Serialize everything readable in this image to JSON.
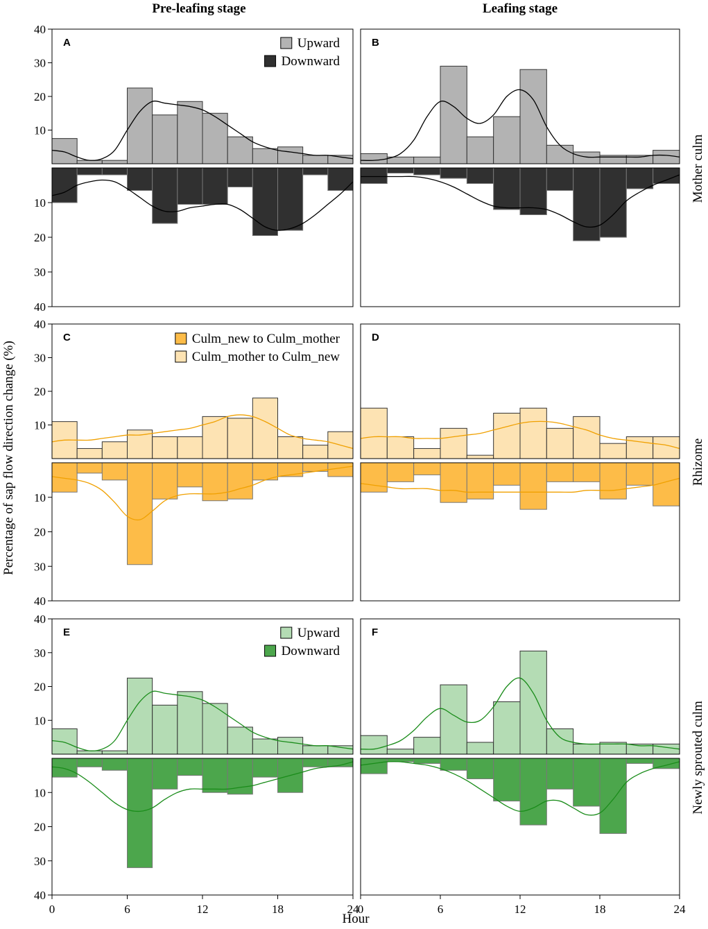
{
  "figure": {
    "column_titles": [
      "Pre-leafing stage",
      "Leafing stage"
    ],
    "row_labels": [
      "Mother culm",
      "Rhizome",
      "Newly sprouted culm"
    ],
    "ylabel": "Percentage of sap flow direction change (%)",
    "xlabel": "Hour"
  },
  "chart_data": [
    {
      "type": "bar",
      "panel": "A",
      "row": 0,
      "col": 0,
      "bins_start": [
        0,
        2,
        4,
        6,
        8,
        10,
        12,
        14,
        16,
        18,
        20,
        22
      ],
      "bin_width": 2,
      "xlim": [
        0,
        24
      ],
      "xticks": [
        0,
        6,
        12,
        18,
        24
      ],
      "ylim": [
        0,
        40
      ],
      "yticks": [
        10,
        20,
        30,
        40
      ],
      "legend": [
        "Upward",
        "Downward"
      ],
      "colors": {
        "up": "#b3b3b3",
        "down": "#303030",
        "line": "#000000"
      },
      "series": [
        {
          "name": "Upward",
          "values": [
            7.5,
            1,
            1,
            22.5,
            14.5,
            18.5,
            15,
            8,
            4.5,
            5,
            2.5,
            2.5
          ]
        },
        {
          "name": "Downward",
          "values": [
            10,
            2,
            2,
            6.5,
            16,
            10.5,
            10.5,
            5.5,
            19.5,
            18,
            2,
            6.5
          ]
        }
      ],
      "smooth": [
        {
          "series": "Upward",
          "x": [
            0,
            1,
            2,
            3,
            4,
            5,
            6,
            7,
            8,
            9,
            10,
            11,
            12,
            13,
            14,
            15,
            16,
            17,
            18,
            19,
            20,
            21,
            22,
            23,
            24
          ],
          "y": [
            4,
            3.5,
            2,
            1,
            1.5,
            4,
            10,
            15.5,
            18.5,
            18,
            17.5,
            17,
            16,
            14,
            11.5,
            9,
            6.5,
            5,
            4,
            3.5,
            3,
            2.5,
            2.5,
            2,
            1.5
          ]
        },
        {
          "series": "Downward",
          "x": [
            0,
            1,
            2,
            3,
            4,
            5,
            6,
            7,
            8,
            9,
            10,
            11,
            12,
            13,
            14,
            15,
            16,
            17,
            18,
            19,
            20,
            21,
            22,
            23,
            24
          ],
          "y": [
            8,
            7,
            5,
            4,
            3.5,
            4,
            6,
            8.5,
            11,
            12.5,
            12.5,
            11.5,
            11,
            10.5,
            10.5,
            12,
            14.5,
            17,
            18,
            17.5,
            16,
            13.5,
            10.5,
            7.5,
            4
          ]
        }
      ]
    },
    {
      "type": "bar",
      "panel": "B",
      "row": 0,
      "col": 1,
      "bins_start": [
        0,
        2,
        4,
        6,
        8,
        10,
        12,
        14,
        16,
        18,
        20,
        22
      ],
      "bin_width": 2,
      "xlim": [
        0,
        24
      ],
      "xticks": [
        0,
        6,
        12,
        18,
        24
      ],
      "ylim": [
        0,
        40
      ],
      "yticks": [
        10,
        20,
        30,
        40
      ],
      "colors": {
        "up": "#b3b3b3",
        "down": "#303030",
        "line": "#000000"
      },
      "series": [
        {
          "name": "Upward",
          "values": [
            3,
            2,
            2,
            29,
            8,
            14,
            28,
            5.5,
            3.5,
            2.5,
            2.5,
            4
          ]
        },
        {
          "name": "Downward",
          "values": [
            4.5,
            1.5,
            2,
            3,
            4.5,
            12,
            13.5,
            6.5,
            21,
            20,
            6,
            4.5
          ]
        }
      ],
      "smooth": [
        {
          "series": "Upward",
          "x": [
            0,
            1,
            2,
            3,
            4,
            5,
            6,
            7,
            8,
            9,
            10,
            11,
            12,
            13,
            14,
            15,
            16,
            17,
            18,
            19,
            20,
            21,
            22,
            23,
            24
          ],
          "y": [
            1,
            1,
            1.5,
            3,
            7,
            14,
            18.5,
            17,
            13.5,
            12,
            14.5,
            20,
            22,
            19,
            11,
            5.5,
            3,
            2,
            2,
            2,
            2,
            2,
            2.5,
            2.5,
            2
          ]
        },
        {
          "series": "Downward",
          "x": [
            0,
            1,
            2,
            3,
            4,
            5,
            6,
            7,
            8,
            9,
            10,
            11,
            12,
            13,
            14,
            15,
            16,
            17,
            18,
            19,
            20,
            21,
            22,
            23,
            24
          ],
          "y": [
            2.5,
            2.5,
            2.5,
            2.5,
            2.5,
            3,
            4,
            5.5,
            7.5,
            9.5,
            11,
            11.5,
            11.5,
            11.5,
            12,
            13.5,
            15.5,
            17,
            16.5,
            13.5,
            9.5,
            7,
            5,
            3.5,
            2
          ]
        }
      ]
    },
    {
      "type": "bar",
      "panel": "C",
      "row": 1,
      "col": 0,
      "bins_start": [
        0,
        2,
        4,
        6,
        8,
        10,
        12,
        14,
        16,
        18,
        20,
        22
      ],
      "bin_width": 2,
      "xlim": [
        0,
        24
      ],
      "xticks": [
        0,
        6,
        12,
        18,
        24
      ],
      "ylim": [
        0,
        40
      ],
      "yticks": [
        10,
        20,
        30,
        40
      ],
      "legend": [
        "Culm_new to Culm_mother",
        "Culm_mother to Culm_new"
      ],
      "colors": {
        "up": "#fde3b3",
        "down": "#fdbc48",
        "line": "#f0a000"
      },
      "series": [
        {
          "name": "Culm_mother to Culm_new",
          "values": [
            11,
            3,
            5,
            8.5,
            6.5,
            6.5,
            12.5,
            12,
            18,
            6.5,
            4,
            8
          ]
        },
        {
          "name": "Culm_new to Culm_mother",
          "values": [
            8.5,
            3,
            5,
            29.5,
            10.5,
            7,
            11,
            10.5,
            5,
            4,
            2.5,
            4
          ]
        }
      ],
      "smooth": [
        {
          "series": "Culm_mother to Culm_new",
          "x": [
            0,
            1,
            2,
            3,
            4,
            5,
            6,
            7,
            8,
            9,
            10,
            11,
            12,
            13,
            14,
            15,
            16,
            17,
            18,
            19,
            20,
            21,
            22,
            23,
            24
          ],
          "y": [
            5,
            5.5,
            5.5,
            5.5,
            6,
            6.5,
            7,
            7,
            7.5,
            8,
            8.5,
            9,
            10,
            11,
            12.5,
            13,
            12.5,
            11,
            9,
            7,
            6,
            5.5,
            5,
            4,
            3
          ]
        },
        {
          "series": "Culm_new to Culm_mother",
          "x": [
            0,
            1,
            2,
            3,
            4,
            5,
            6,
            7,
            8,
            9,
            10,
            11,
            12,
            13,
            14,
            15,
            16,
            17,
            18,
            19,
            20,
            21,
            22,
            23,
            24
          ],
          "y": [
            4,
            4.5,
            5,
            6,
            8,
            11.5,
            15.5,
            16.5,
            14,
            11,
            9.5,
            9,
            9,
            9,
            8.5,
            7.5,
            6.5,
            5,
            4,
            3.5,
            3,
            2.5,
            2,
            1.5,
            1
          ]
        }
      ]
    },
    {
      "type": "bar",
      "panel": "D",
      "row": 1,
      "col": 1,
      "bins_start": [
        0,
        2,
        4,
        6,
        8,
        10,
        12,
        14,
        16,
        18,
        20,
        22
      ],
      "bin_width": 2,
      "xlim": [
        0,
        24
      ],
      "xticks": [
        0,
        6,
        12,
        18,
        24
      ],
      "ylim": [
        0,
        40
      ],
      "yticks": [
        10,
        20,
        30,
        40
      ],
      "colors": {
        "up": "#fde3b3",
        "down": "#fdbc48",
        "line": "#f0a000"
      },
      "series": [
        {
          "name": "Culm_mother to Culm_new",
          "values": [
            15,
            6.5,
            3,
            9,
            1,
            13.5,
            15,
            9,
            12.5,
            4.5,
            6.5,
            6.5
          ]
        },
        {
          "name": "Culm_new to Culm_mother",
          "values": [
            8.5,
            5.5,
            3.5,
            11.5,
            10.5,
            6.5,
            13.5,
            5.5,
            5.5,
            10.5,
            6.5,
            12.5
          ]
        }
      ],
      "smooth": [
        {
          "series": "Culm_mother to Culm_new",
          "x": [
            0,
            1,
            2,
            3,
            4,
            5,
            6,
            7,
            8,
            9,
            10,
            11,
            12,
            13,
            14,
            15,
            16,
            17,
            18,
            19,
            20,
            21,
            22,
            23,
            24
          ],
          "y": [
            6,
            6.5,
            6.5,
            6.5,
            6,
            6,
            6,
            6.5,
            7,
            7.5,
            8.5,
            9.5,
            10.5,
            11,
            11,
            10.5,
            9.5,
            8.5,
            7,
            6,
            5.5,
            5,
            4.5,
            4,
            3
          ]
        },
        {
          "series": "Culm_new to Culm_mother",
          "x": [
            0,
            1,
            2,
            3,
            4,
            5,
            6,
            7,
            8,
            9,
            10,
            11,
            12,
            13,
            14,
            15,
            16,
            17,
            18,
            19,
            20,
            21,
            22,
            23,
            24
          ],
          "y": [
            6,
            6.5,
            7,
            7.5,
            7.5,
            7.5,
            8,
            8,
            8.5,
            8.5,
            8.5,
            8.5,
            8.5,
            8.5,
            8.5,
            8.5,
            8.5,
            8,
            8,
            8,
            7.5,
            7,
            6.5,
            5.5,
            4.5
          ]
        }
      ]
    },
    {
      "type": "bar",
      "panel": "E",
      "row": 2,
      "col": 0,
      "bins_start": [
        0,
        2,
        4,
        6,
        8,
        10,
        12,
        14,
        16,
        18,
        20,
        22
      ],
      "bin_width": 2,
      "xlim": [
        0,
        24
      ],
      "xticks": [
        0,
        6,
        12,
        18,
        24
      ],
      "ylim": [
        0,
        40
      ],
      "yticks": [
        10,
        20,
        30,
        40
      ],
      "legend": [
        "Upward",
        "Downward"
      ],
      "colors": {
        "up": "#b4dcb4",
        "down": "#4ca64c",
        "line": "#1a8c1a"
      },
      "series": [
        {
          "name": "Upward",
          "values": [
            7.5,
            1,
            1,
            22.5,
            14.5,
            18.5,
            15,
            8,
            4.5,
            5,
            2.5,
            2.5
          ]
        },
        {
          "name": "Downward",
          "values": [
            5.5,
            2.5,
            3.5,
            32,
            9,
            5,
            10,
            10.5,
            5.5,
            10,
            2.5,
            2.5
          ]
        }
      ],
      "smooth": [
        {
          "series": "Upward",
          "x": [
            0,
            1,
            2,
            3,
            4,
            5,
            6,
            7,
            8,
            9,
            10,
            11,
            12,
            13,
            14,
            15,
            16,
            17,
            18,
            19,
            20,
            21,
            22,
            23,
            24
          ],
          "y": [
            4,
            3.5,
            2,
            1,
            1.5,
            4,
            10,
            15.5,
            18.5,
            18,
            17.5,
            17,
            16,
            14,
            11.5,
            9,
            6.5,
            5,
            4,
            3.5,
            3,
            2.5,
            2.5,
            2,
            1.5
          ]
        },
        {
          "series": "Downward",
          "x": [
            0,
            1,
            2,
            3,
            4,
            5,
            6,
            7,
            8,
            9,
            10,
            11,
            12,
            13,
            14,
            15,
            16,
            17,
            18,
            19,
            20,
            21,
            22,
            23,
            24
          ],
          "y": [
            2.5,
            3,
            4.5,
            7,
            10,
            13,
            15,
            15.5,
            14.5,
            12,
            10,
            9,
            9,
            9,
            9,
            8.5,
            8,
            7,
            6,
            5,
            4,
            3,
            2.5,
            2,
            1
          ]
        }
      ]
    },
    {
      "type": "bar",
      "panel": "F",
      "row": 2,
      "col": 1,
      "bins_start": [
        0,
        2,
        4,
        6,
        8,
        10,
        12,
        14,
        16,
        18,
        20,
        22
      ],
      "bin_width": 2,
      "xlim": [
        0,
        24
      ],
      "xticks": [
        0,
        6,
        12,
        18,
        24
      ],
      "ylim": [
        0,
        40
      ],
      "yticks": [
        10,
        20,
        30,
        40
      ],
      "colors": {
        "up": "#b4dcb4",
        "down": "#4ca64c",
        "line": "#1a8c1a"
      },
      "series": [
        {
          "name": "Upward",
          "values": [
            5.5,
            1.5,
            5,
            20.5,
            3.5,
            15.5,
            30.5,
            7.5,
            3,
            3.5,
            3,
            3
          ]
        },
        {
          "name": "Downward",
          "values": [
            4.5,
            1,
            1.5,
            3.5,
            6,
            12.5,
            19.5,
            9,
            14,
            22,
            1.5,
            3
          ]
        }
      ],
      "smooth": [
        {
          "series": "Upward",
          "x": [
            0,
            1,
            2,
            3,
            4,
            5,
            6,
            7,
            8,
            9,
            10,
            11,
            12,
            13,
            14,
            15,
            16,
            17,
            18,
            19,
            20,
            21,
            22,
            23,
            24
          ],
          "y": [
            1.5,
            1.5,
            2.5,
            4,
            7,
            11,
            13.5,
            11.5,
            9.5,
            10,
            14,
            20,
            22.5,
            18,
            10,
            5,
            3.5,
            3,
            3,
            3,
            3,
            2.5,
            2.5,
            2,
            1.5
          ]
        },
        {
          "series": "Downward",
          "x": [
            0,
            1,
            2,
            3,
            4,
            5,
            6,
            7,
            8,
            9,
            10,
            11,
            12,
            13,
            14,
            15,
            16,
            17,
            18,
            19,
            20,
            21,
            22,
            23,
            24
          ],
          "y": [
            2,
            1.5,
            1,
            1,
            1.5,
            2,
            3,
            4.5,
            6.5,
            9,
            11.5,
            14,
            15.5,
            14.5,
            12.5,
            12.5,
            14.5,
            16.5,
            16,
            12,
            7,
            4.5,
            3,
            2,
            1
          ]
        }
      ]
    }
  ]
}
